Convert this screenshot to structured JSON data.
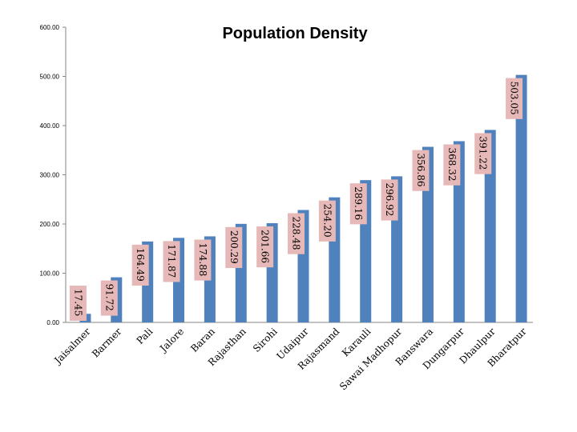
{
  "chart_data": {
    "type": "bar",
    "title": "Population Density",
    "xlabel": "",
    "ylabel": "",
    "ylim": [
      0,
      600
    ],
    "yticks": [
      "0.00",
      "100.00",
      "200.00",
      "300.00",
      "400.00",
      "500.00",
      "600.00"
    ],
    "grid": false,
    "legend": "none",
    "bar_color": "#4f81bd",
    "label_box_color": "#e6b9b8",
    "categories": [
      "Jaisalmer",
      "Barmer",
      "Pali",
      "Jalore",
      "Baran",
      "Rajasthan",
      "Sirohi",
      "Udaipur",
      "Rajasmand",
      "Karauli",
      "Sawai Madhopur",
      "Banswara",
      "Dungarpur",
      "Dhaulpur",
      "Bharatpur"
    ],
    "values": [
      17.45,
      91.72,
      164.49,
      171.87,
      174.88,
      200.29,
      201.66,
      228.48,
      254.2,
      289.16,
      296.92,
      356.86,
      368.32,
      391.22,
      503.05
    ],
    "data_labels": [
      "17.45",
      "91.72",
      "164.49",
      "171.87",
      "174.88",
      "200.29",
      "201.66",
      "228.48",
      "254.20",
      "289.16",
      "296.92",
      "356.86",
      "368.32",
      "391.22",
      "503.05"
    ]
  }
}
